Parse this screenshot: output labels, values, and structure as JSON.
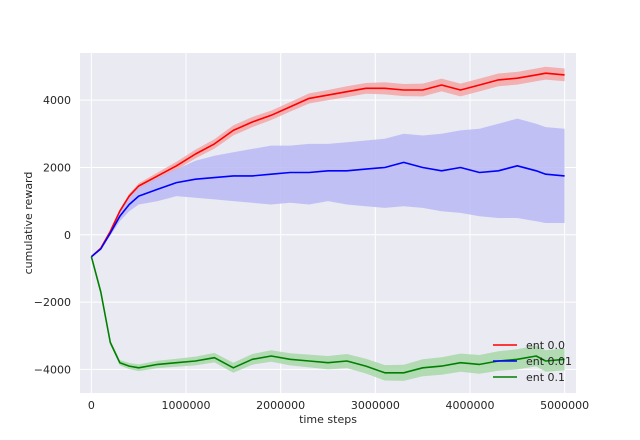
{
  "chart_data": {
    "type": "line",
    "title": "",
    "xlabel": "time steps",
    "ylabel": "cumulative reward",
    "xlim": [
      -120000,
      5120000
    ],
    "ylim": [
      -4700,
      5400
    ],
    "xticks": [
      0,
      1000000,
      2000000,
      3000000,
      4000000,
      5000000
    ],
    "xtick_labels": [
      "0",
      "1000000",
      "2000000",
      "3000000",
      "4000000",
      "5000000"
    ],
    "yticks": [
      -4000,
      -2000,
      0,
      2000,
      4000
    ],
    "ytick_labels": [
      "−4000",
      "−2000",
      "0",
      "2000",
      "4000"
    ],
    "grid": true,
    "background": "#eaeaf2",
    "legend_position": "bottom-right",
    "series": [
      {
        "name": "ent 0.0",
        "color": "#ff0000",
        "band_color": "#f4a6a6",
        "x": [
          0,
          100000,
          200000,
          300000,
          400000,
          500000,
          700000,
          900000,
          1100000,
          1300000,
          1500000,
          1700000,
          1900000,
          2100000,
          2300000,
          2500000,
          2700000,
          2900000,
          3100000,
          3300000,
          3500000,
          3700000,
          3900000,
          4100000,
          4300000,
          4500000,
          4700000,
          4800000,
          5000000
        ],
        "y": [
          -650,
          -400,
          100,
          700,
          1150,
          1450,
          1750,
          2050,
          2400,
          2700,
          3100,
          3350,
          3550,
          3800,
          4050,
          4150,
          4250,
          4350,
          4350,
          4300,
          4300,
          4450,
          4300,
          4450,
          4600,
          4650,
          4750,
          4800,
          4750
        ],
        "lower": [
          -650,
          -420,
          60,
          650,
          1080,
          1370,
          1650,
          1930,
          2270,
          2560,
          2950,
          3200,
          3410,
          3660,
          3900,
          4000,
          4090,
          4190,
          4170,
          4120,
          4110,
          4260,
          4110,
          4260,
          4410,
          4460,
          4560,
          4610,
          4560
        ],
        "upper": [
          -650,
          -380,
          140,
          750,
          1220,
          1530,
          1850,
          2170,
          2530,
          2840,
          3250,
          3500,
          3690,
          3940,
          4200,
          4300,
          4410,
          4510,
          4530,
          4480,
          4490,
          4640,
          4490,
          4640,
          4790,
          4840,
          4940,
          4990,
          4940
        ]
      },
      {
        "name": "ent 0.01",
        "color": "#0000ff",
        "band_color": "#b8b8f5",
        "x": [
          0,
          100000,
          200000,
          300000,
          400000,
          500000,
          700000,
          900000,
          1100000,
          1300000,
          1500000,
          1700000,
          1900000,
          2100000,
          2300000,
          2500000,
          2700000,
          2900000,
          3100000,
          3300000,
          3500000,
          3700000,
          3900000,
          4100000,
          4300000,
          4500000,
          4700000,
          4800000,
          5000000
        ],
        "y": [
          -650,
          -420,
          50,
          550,
          900,
          1150,
          1350,
          1550,
          1650,
          1700,
          1750,
          1750,
          1800,
          1850,
          1850,
          1900,
          1900,
          1950,
          2000,
          2150,
          2000,
          1900,
          2000,
          1850,
          1900,
          2050,
          1900,
          1800,
          1750
        ],
        "lower": [
          -650,
          -450,
          -20,
          400,
          700,
          900,
          1000,
          1150,
          1100,
          1050,
          1000,
          950,
          900,
          950,
          900,
          1000,
          900,
          850,
          800,
          850,
          800,
          700,
          650,
          550,
          500,
          500,
          400,
          350,
          350
        ],
        "upper": [
          -650,
          -390,
          120,
          700,
          1100,
          1400,
          1700,
          1950,
          2200,
          2350,
          2450,
          2550,
          2650,
          2650,
          2700,
          2700,
          2750,
          2800,
          2850,
          3000,
          2950,
          3000,
          3100,
          3150,
          3300,
          3450,
          3300,
          3200,
          3150
        ]
      },
      {
        "name": "ent 0.1",
        "color": "#008000",
        "band_color": "#a8d8a8",
        "x": [
          0,
          100000,
          200000,
          300000,
          400000,
          500000,
          700000,
          900000,
          1100000,
          1300000,
          1500000,
          1700000,
          1900000,
          2100000,
          2300000,
          2500000,
          2700000,
          2900000,
          3100000,
          3300000,
          3500000,
          3700000,
          3900000,
          4100000,
          4300000,
          4500000,
          4700000,
          4800000,
          5000000
        ],
        "y": [
          -650,
          -1700,
          -3200,
          -3800,
          -3900,
          -3950,
          -3850,
          -3800,
          -3750,
          -3650,
          -3950,
          -3700,
          -3600,
          -3700,
          -3750,
          -3800,
          -3750,
          -3900,
          -4100,
          -4100,
          -3950,
          -3900,
          -3800,
          -3850,
          -3750,
          -3700,
          -3600,
          -3750,
          -3700
        ],
        "lower": [
          -650,
          -1750,
          -3270,
          -3880,
          -3990,
          -4050,
          -3960,
          -3920,
          -3880,
          -3790,
          -4100,
          -3860,
          -3770,
          -3880,
          -3940,
          -4000,
          -3960,
          -4120,
          -4330,
          -4340,
          -4200,
          -4160,
          -4070,
          -4130,
          -4040,
          -4000,
          -3910,
          -4070,
          -4030
        ],
        "upper": [
          -650,
          -1650,
          -3130,
          -3720,
          -3810,
          -3850,
          -3740,
          -3680,
          -3620,
          -3510,
          -3800,
          -3540,
          -3430,
          -3520,
          -3560,
          -3600,
          -3540,
          -3680,
          -3870,
          -3860,
          -3700,
          -3640,
          -3530,
          -3570,
          -3460,
          -3400,
          -3290,
          -3430,
          -3370
        ]
      }
    ]
  }
}
